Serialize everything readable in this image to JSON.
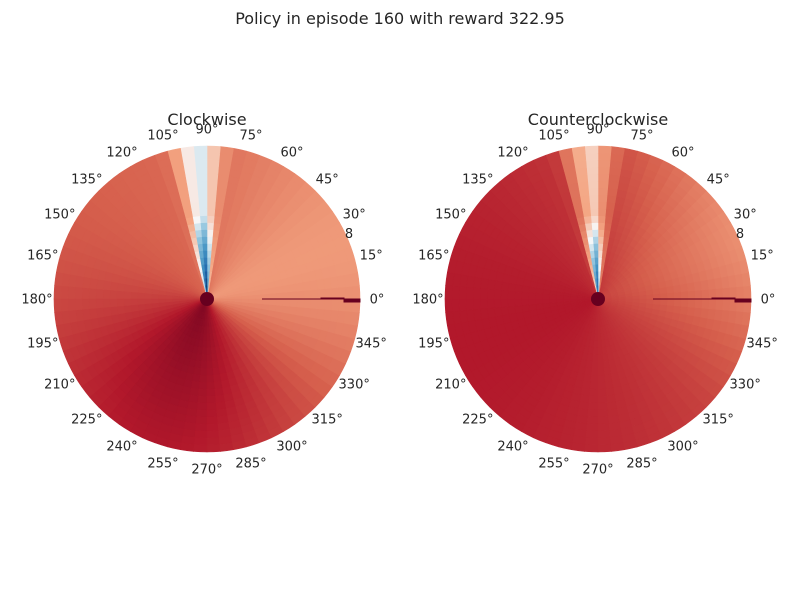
{
  "figure": {
    "title": "Policy in episode 160 with reward 322.95"
  },
  "chart_data": [
    {
      "type": "heatmap",
      "projection": "polar",
      "title": "Clockwise",
      "theta_ticks_deg": [
        0,
        15,
        30,
        45,
        60,
        75,
        90,
        105,
        120,
        135,
        150,
        165,
        180,
        195,
        210,
        225,
        240,
        255,
        270,
        285,
        300,
        315,
        330,
        345
      ],
      "theta_tick_labels": [
        "0°",
        "15°",
        "30°",
        "45°",
        "60°",
        "75°",
        "90°",
        "105°",
        "120°",
        "135°",
        "150°",
        "165°",
        "180°",
        "195°",
        "210°",
        "225°",
        "240°",
        "255°",
        "270°",
        "285°",
        "300°",
        "315°",
        "330°",
        "345°"
      ],
      "radial_tick_labels": [
        "8"
      ],
      "colormap": "RdBu",
      "grid": false,
      "legend": "none"
    },
    {
      "type": "heatmap",
      "projection": "polar",
      "title": "Counterclockwise",
      "theta_ticks_deg": [
        0,
        15,
        30,
        45,
        60,
        75,
        90,
        105,
        120,
        135,
        150,
        165,
        180,
        195,
        210,
        225,
        240,
        255,
        270,
        285,
        300,
        315,
        330,
        345
      ],
      "theta_tick_labels": [
        "0°",
        "15°",
        "30°",
        "45°",
        "60°",
        "75°",
        "90°",
        "105°",
        "120°",
        "135°",
        "150°",
        "165°",
        "180°",
        "195°",
        "210°",
        "225°",
        "240°",
        "255°",
        "270°",
        "285°",
        "300°",
        "315°",
        "330°",
        "345°"
      ],
      "radial_tick_labels": [
        "8"
      ],
      "colormap": "RdBu",
      "grid": false,
      "legend": "none"
    }
  ]
}
